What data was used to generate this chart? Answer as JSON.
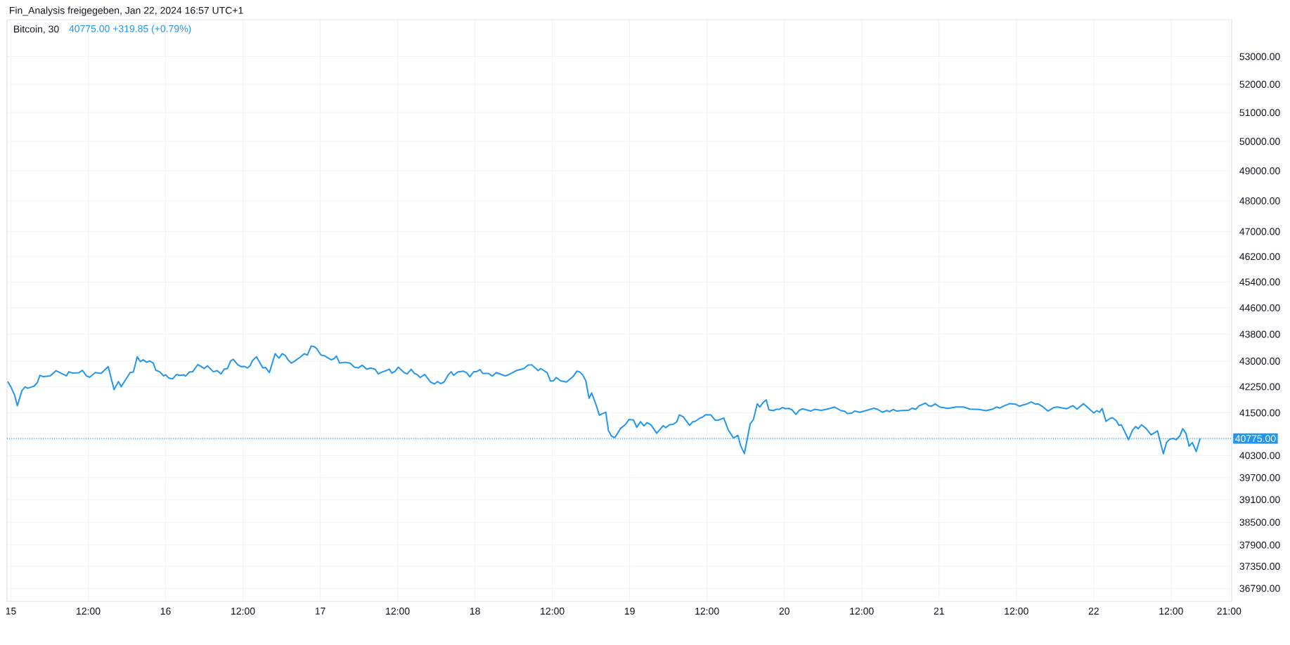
{
  "chart_data": {
    "type": "line",
    "title": "Bitcoin, 30",
    "subtitle": "40775.00 +319.85 (+0.79%)",
    "annotations": [
      "Fin_Analysis freigegeben, Jan 22, 2024 16:57 UTC+1"
    ],
    "log": "y",
    "grid": true,
    "marker": "none",
    "line_style": "solid",
    "xlim": [
      "2024-01-14T23:24",
      "2024-01-22T21:24"
    ],
    "ylim": [
      36460,
      54360
    ],
    "xticks": [
      {
        "value": "2024-01-15",
        "label": "15"
      },
      {
        "value": "2024-01-15T12:00",
        "label": "12:00"
      },
      {
        "value": "2024-01-16",
        "label": "16"
      },
      {
        "value": "2024-01-16T12:00",
        "label": "12:00"
      },
      {
        "value": "2024-01-17",
        "label": "17"
      },
      {
        "value": "2024-01-17T12:00",
        "label": "12:00"
      },
      {
        "value": "2024-01-18",
        "label": "18"
      },
      {
        "value": "2024-01-18T12:00",
        "label": "12:00"
      },
      {
        "value": "2024-01-19",
        "label": "19"
      },
      {
        "value": "2024-01-19T12:00",
        "label": "12:00"
      },
      {
        "value": "2024-01-20",
        "label": "20"
      },
      {
        "value": "2024-01-20T12:00",
        "label": "12:00"
      },
      {
        "value": "2024-01-21",
        "label": "21"
      },
      {
        "value": "2024-01-21T12:00",
        "label": "12:00"
      },
      {
        "value": "2024-01-22",
        "label": "22"
      },
      {
        "value": "2024-01-22T12:00",
        "label": "12:00"
      },
      {
        "value": "2024-01-22T21:00",
        "label": "21:00"
      }
    ],
    "yticks": [
      {
        "value": 53000,
        "label": "53000.00"
      },
      {
        "value": 52000,
        "label": "52000.00"
      },
      {
        "value": 51000,
        "label": "51000.00"
      },
      {
        "value": 50000,
        "label": "50000.00"
      },
      {
        "value": 49000,
        "label": "49000.00"
      },
      {
        "value": 48000,
        "label": "48000.00"
      },
      {
        "value": 47000,
        "label": "47000.00"
      },
      {
        "value": 46200,
        "label": "46200.00"
      },
      {
        "value": 45400,
        "label": "45400.00"
      },
      {
        "value": 44600,
        "label": "44600.00"
      },
      {
        "value": 43800,
        "label": "43800.00"
      },
      {
        "value": 43000,
        "label": "43000.00"
      },
      {
        "value": 42250,
        "label": "42250.00"
      },
      {
        "value": 41500,
        "label": "41500.00"
      },
      {
        "value": 40900,
        "label": null
      },
      {
        "value": 40300,
        "label": "40300.00"
      },
      {
        "value": 39700,
        "label": "39700.00"
      },
      {
        "value": 39100,
        "label": "39100.00"
      },
      {
        "value": 38500,
        "label": "38500.00"
      },
      {
        "value": 37900,
        "label": "37900.00"
      },
      {
        "value": 37350,
        "label": "37350.00"
      },
      {
        "value": 36790,
        "label": "36790.00"
      }
    ],
    "ref_lines": [
      {
        "axis": "y",
        "value": 40775,
        "label": "40775.00",
        "color": "#2196f3",
        "line_style": "dotted"
      }
    ],
    "series": [
      {
        "color": "#2196f3",
        "x": [
          "2024-01-14T23:30",
          "2024-01-15T00:00",
          "2024-01-15T00:36",
          "2024-01-15T01:00",
          "2024-01-15T01:42",
          "2024-01-15T02:12",
          "2024-01-15T02:36",
          "2024-01-15T03:36",
          "2024-01-15T04:06",
          "2024-01-15T04:30",
          "2024-01-15T05:00",
          "2024-01-15T06:06",
          "2024-01-15T07:00",
          "2024-01-15T08:36",
          "2024-01-15T09:00",
          "2024-01-15T09:36",
          "2024-01-15T10:30",
          "2024-01-15T11:06",
          "2024-01-15T11:42",
          "2024-01-15T12:12",
          "2024-01-15T13:06",
          "2024-01-15T14:00",
          "2024-01-15T15:06",
          "2024-01-15T16:00",
          "2024-01-15T16:42",
          "2024-01-15T17:06",
          "2024-01-15T18:30",
          "2024-01-15T19:00",
          "2024-01-15T19:36",
          "2024-01-15T20:06",
          "2024-01-15T20:30",
          "2024-01-15T21:06",
          "2024-01-15T21:30",
          "2024-01-15T22:06",
          "2024-01-15T22:30",
          "2024-01-15T23:06",
          "2024-01-15T23:42",
          "2024-01-16T00:00",
          "2024-01-16T00:30",
          "2024-01-16T01:06",
          "2024-01-16T01:42",
          "2024-01-16T02:12",
          "2024-01-16T02:48",
          "2024-01-16T03:06",
          "2024-01-16T03:42",
          "2024-01-16T04:12",
          "2024-01-16T05:00",
          "2024-01-16T06:00",
          "2024-01-16T06:30",
          "2024-01-16T07:24",
          "2024-01-16T08:00",
          "2024-01-16T08:36",
          "2024-01-16T09:06",
          "2024-01-16T09:36",
          "2024-01-16T10:06",
          "2024-01-16T10:30",
          "2024-01-16T11:12",
          "2024-01-16T11:42",
          "2024-01-16T12:12",
          "2024-01-16T12:42",
          "2024-01-16T13:06",
          "2024-01-16T13:30",
          "2024-01-16T14:06",
          "2024-01-16T15:06",
          "2024-01-16T15:30",
          "2024-01-16T16:06",
          "2024-01-16T17:00",
          "2024-01-16T17:36",
          "2024-01-16T18:06",
          "2024-01-16T18:36",
          "2024-01-16T19:00",
          "2024-01-16T19:30",
          "2024-01-16T20:00",
          "2024-01-16T20:54",
          "2024-01-16T21:30",
          "2024-01-16T22:00",
          "2024-01-16T22:36",
          "2024-01-16T23:06",
          "2024-01-16T23:30",
          "2024-01-17T00:06",
          "2024-01-17T00:36",
          "2024-01-17T01:42",
          "2024-01-17T02:06",
          "2024-01-17T02:30",
          "2024-01-17T03:00",
          "2024-01-17T03:48",
          "2024-01-17T04:36",
          "2024-01-17T05:18",
          "2024-01-17T05:54",
          "2024-01-17T06:30",
          "2024-01-17T07:12",
          "2024-01-17T07:48",
          "2024-01-17T08:30",
          "2024-01-17T09:00",
          "2024-01-17T09:42",
          "2024-01-17T10:12",
          "2024-01-17T10:42",
          "2024-01-17T11:06",
          "2024-01-17T11:36",
          "2024-01-17T12:06",
          "2024-01-17T13:00",
          "2024-01-17T13:30",
          "2024-01-17T14:06",
          "2024-01-17T14:36",
          "2024-01-17T15:00",
          "2024-01-17T15:30",
          "2024-01-17T16:12",
          "2024-01-17T17:06",
          "2024-01-17T17:42",
          "2024-01-17T18:12",
          "2024-01-17T18:42",
          "2024-01-17T19:12",
          "2024-01-17T19:48",
          "2024-01-17T20:18",
          "2024-01-17T20:42",
          "2024-01-17T21:18",
          "2024-01-17T22:12",
          "2024-01-17T22:42",
          "2024-01-17T23:12",
          "2024-01-17T23:48",
          "2024-01-18T00:12",
          "2024-01-18T00:48",
          "2024-01-18T01:12",
          "2024-01-18T02:06",
          "2024-01-18T02:42",
          "2024-01-18T03:18",
          "2024-01-18T04:42",
          "2024-01-18T05:18",
          "2024-01-18T06:24",
          "2024-01-18T07:36",
          "2024-01-18T08:12",
          "2024-01-18T08:48",
          "2024-01-18T09:48",
          "2024-01-18T10:12",
          "2024-01-18T11:12",
          "2024-01-18T11:42",
          "2024-01-18T12:12",
          "2024-01-18T12:36",
          "2024-01-18T13:18",
          "2024-01-18T14:12",
          "2024-01-18T15:12",
          "2024-01-18T15:48",
          "2024-01-18T16:12",
          "2024-01-18T16:42",
          "2024-01-18T17:12",
          "2024-01-18T17:42",
          "2024-01-18T18:06",
          "2024-01-18T18:42",
          "2024-01-18T19:18",
          "2024-01-18T19:48",
          "2024-01-18T20:18",
          "2024-01-18T20:42",
          "2024-01-18T21:12",
          "2024-01-18T21:42",
          "2024-01-18T22:36",
          "2024-01-18T23:18",
          "2024-01-18T23:54",
          "2024-01-19T00:36",
          "2024-01-19T01:06",
          "2024-01-19T01:42",
          "2024-01-19T02:12",
          "2024-01-19T02:42",
          "2024-01-19T03:18",
          "2024-01-19T04:12",
          "2024-01-19T05:12",
          "2024-01-19T05:36",
          "2024-01-19T06:12",
          "2024-01-19T06:42",
          "2024-01-19T07:18",
          "2024-01-19T07:42",
          "2024-01-19T08:18",
          "2024-01-19T09:18",
          "2024-01-19T09:48",
          "2024-01-19T10:12",
          "2024-01-19T10:54",
          "2024-01-19T11:18",
          "2024-01-19T11:48",
          "2024-01-19T12:36",
          "2024-01-19T13:18",
          "2024-01-19T13:48",
          "2024-01-19T14:36",
          "2024-01-19T15:18",
          "2024-01-19T16:06",
          "2024-01-19T16:48",
          "2024-01-19T17:12",
          "2024-01-19T17:48",
          "2024-01-19T18:42",
          "2024-01-19T19:12",
          "2024-01-19T19:48",
          "2024-01-19T20:12",
          "2024-01-19T20:42",
          "2024-01-19T21:12",
          "2024-01-19T21:36",
          "2024-01-19T22:18",
          "2024-01-19T22:42",
          "2024-01-19T23:12",
          "2024-01-19T23:42",
          "2024-01-20T00:12",
          "2024-01-20T00:42",
          "2024-01-20T01:12",
          "2024-01-20T01:48",
          "2024-01-20T02:18",
          "2024-01-20T02:48",
          "2024-01-20T03:24",
          "2024-01-20T04:06",
          "2024-01-20T04:42",
          "2024-01-20T05:42",
          "2024-01-20T06:24",
          "2024-01-20T07:12",
          "2024-01-20T07:48",
          "2024-01-20T08:48",
          "2024-01-20T09:18",
          "2024-01-20T09:48",
          "2024-01-20T10:30",
          "2024-01-20T10:54",
          "2024-01-20T11:42",
          "2024-01-20T12:48",
          "2024-01-20T13:54",
          "2024-01-20T14:30",
          "2024-01-20T15:12",
          "2024-01-20T15:54",
          "2024-01-20T16:18",
          "2024-01-20T16:54",
          "2024-01-20T17:24",
          "2024-01-20T18:18",
          "2024-01-20T19:12",
          "2024-01-20T19:48",
          "2024-01-20T20:24",
          "2024-01-20T20:54",
          "2024-01-20T21:54",
          "2024-01-20T22:24",
          "2024-01-20T22:48",
          "2024-01-20T23:24",
          "2024-01-21T00:06",
          "2024-01-21T01:24",
          "2024-01-21T02:36",
          "2024-01-21T03:48",
          "2024-01-21T04:48",
          "2024-01-21T06:12",
          "2024-01-21T07:18",
          "2024-01-21T08:18",
          "2024-01-21T08:54",
          "2024-01-21T09:24",
          "2024-01-21T10:06",
          "2024-01-21T10:54",
          "2024-01-21T11:54",
          "2024-01-21T12:30",
          "2024-01-21T13:00",
          "2024-01-21T13:30",
          "2024-01-21T14:18",
          "2024-01-21T15:00",
          "2024-01-21T15:24",
          "2024-01-21T16:00",
          "2024-01-21T16:54",
          "2024-01-21T17:48",
          "2024-01-21T18:24",
          "2024-01-21T19:12",
          "2024-01-21T19:48",
          "2024-01-21T20:30",
          "2024-01-21T20:48",
          "2024-01-21T21:24",
          "2024-01-21T22:24",
          "2024-01-21T23:24",
          "2024-01-22T00:00",
          "2024-01-22T00:30",
          "2024-01-22T00:54",
          "2024-01-22T01:18",
          "2024-01-22T01:54",
          "2024-01-22T02:30",
          "2024-01-22T02:54",
          "2024-01-22T03:30",
          "2024-01-22T03:54",
          "2024-01-22T04:18",
          "2024-01-22T05:24",
          "2024-01-22T06:00",
          "2024-01-22T06:30",
          "2024-01-22T06:54",
          "2024-01-22T07:24",
          "2024-01-22T08:06",
          "2024-01-22T08:54",
          "2024-01-22T09:54",
          "2024-01-22T10:48",
          "2024-01-22T11:18",
          "2024-01-22T11:48",
          "2024-01-22T12:24",
          "2024-01-22T12:48",
          "2024-01-22T13:24",
          "2024-01-22T13:48",
          "2024-01-22T14:18",
          "2024-01-22T14:48",
          "2024-01-22T15:18",
          "2024-01-22T15:54",
          "2024-01-22T16:30"
        ],
        "values": [
          42400,
          42244,
          41994,
          41700,
          42134,
          42244,
          42205,
          42268,
          42370,
          42582,
          42543,
          42567,
          42719,
          42567,
          42686,
          42646,
          42655,
          42728,
          42567,
          42526,
          42662,
          42637,
          42837,
          42165,
          42400,
          42250,
          42662,
          42678,
          43125,
          42982,
          43038,
          42965,
          43005,
          42940,
          42728,
          42686,
          42567,
          42598,
          42503,
          42479,
          42607,
          42582,
          42598,
          42558,
          42678,
          42686,
          42899,
          42782,
          42862,
          42686,
          42719,
          42623,
          42764,
          42782,
          43005,
          43052,
          42892,
          42837,
          42845,
          42798,
          42862,
          43020,
          43125,
          42798,
          42813,
          42662,
          43218,
          43090,
          43218,
          43160,
          43038,
          42940,
          42997,
          43117,
          43218,
          43180,
          43450,
          43424,
          43358,
          43180,
          43160,
          43040,
          43066,
          43150,
          42940,
          42965,
          42940,
          42820,
          42798,
          42878,
          42760,
          42798,
          42760,
          42623,
          42686,
          42719,
          42764,
          42646,
          42703,
          42820,
          42662,
          42623,
          42760,
          42637,
          42607,
          42519,
          42607,
          42386,
          42330,
          42400,
          42340,
          42386,
          42582,
          42686,
          42582,
          42678,
          42703,
          42662,
          42543,
          42686,
          42686,
          42750,
          42637,
          42637,
          42558,
          42662,
          42567,
          42607,
          42719,
          42782,
          42878,
          42892,
          42719,
          42782,
          42662,
          42416,
          42423,
          42519,
          42423,
          42386,
          42543,
          42703,
          42686,
          42598,
          42423,
          41915,
          42070,
          41776,
          41432,
          41478,
          41516,
          41000,
          40835,
          40800,
          41060,
          41160,
          41310,
          41296,
          41090,
          41248,
          41130,
          41220,
          41160,
          40922,
          41135,
          41078,
          41160,
          41170,
          41240,
          41440,
          41390,
          41145,
          41248,
          41260,
          41350,
          41375,
          41445,
          41440,
          41285,
          41296,
          41350,
          41015,
          40790,
          40860,
          40580,
          40355,
          41185,
          41310,
          41760,
          41665,
          41795,
          41870,
          41585,
          41560,
          41600,
          41600,
          41650,
          41615,
          41625,
          41585,
          41455,
          41570,
          41615,
          41585,
          41550,
          41600,
          41570,
          41595,
          41630,
          41665,
          41560,
          41550,
          41478,
          41495,
          41550,
          41516,
          41570,
          41630,
          41595,
          41516,
          41565,
          41532,
          41595,
          41550,
          41565,
          41570,
          41630,
          41600,
          41700,
          41776,
          41700,
          41685,
          41755,
          41665,
          41625,
          41665,
          41665,
          41605,
          41595,
          41560,
          41605,
          41665,
          41635,
          41700,
          41760,
          41745,
          41685,
          41720,
          41745,
          41810,
          41745,
          41755,
          41685,
          41550,
          41650,
          41665,
          41635,
          41615,
          41685,
          41700,
          41605,
          41760,
          41595,
          41495,
          41560,
          41516,
          41625,
          41255,
          41335,
          41360,
          41275,
          41145,
          41160,
          40740,
          41000,
          41110,
          41050,
          41160,
          41060,
          40875,
          40985,
          40350,
          40660,
          40755,
          40775,
          40740,
          40860,
          41050,
          40922,
          40560,
          40660,
          40410,
          40775
        ]
      }
    ]
  }
}
